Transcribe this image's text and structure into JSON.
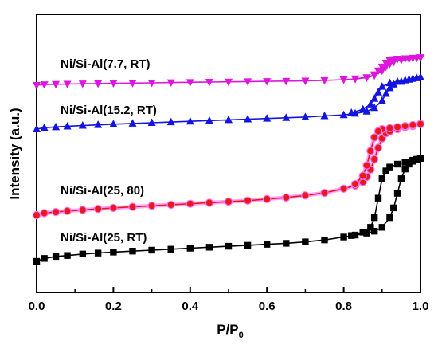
{
  "chart_data": {
    "type": "line",
    "xlabel": "P/P",
    "xlabel_sub": "0",
    "ylabel": "Intensity (a.u.)",
    "xlim": [
      0.0,
      1.0
    ],
    "x_ticks": [
      "0.0",
      "0.2",
      "0.4",
      "0.6",
      "0.8",
      "1.0"
    ],
    "y_ticks_labeled": false,
    "grid": false,
    "legend": "inline labels above each curve",
    "series": [
      {
        "name": "Ni/Si-Al(25, RT)",
        "color": "#000000",
        "marker": "square",
        "offset": 0.0,
        "adsorption": [
          [
            0.0,
            0.0
          ],
          [
            0.02,
            0.03
          ],
          [
            0.05,
            0.05
          ],
          [
            0.08,
            0.06
          ],
          [
            0.12,
            0.075
          ],
          [
            0.16,
            0.085
          ],
          [
            0.2,
            0.095
          ],
          [
            0.25,
            0.105
          ],
          [
            0.3,
            0.115
          ],
          [
            0.35,
            0.125
          ],
          [
            0.4,
            0.135
          ],
          [
            0.45,
            0.145
          ],
          [
            0.5,
            0.155
          ],
          [
            0.55,
            0.165
          ],
          [
            0.6,
            0.175
          ],
          [
            0.65,
            0.185
          ],
          [
            0.7,
            0.2
          ],
          [
            0.75,
            0.22
          ],
          [
            0.8,
            0.25
          ],
          [
            0.83,
            0.27
          ],
          [
            0.86,
            0.29
          ],
          [
            0.88,
            0.31
          ],
          [
            0.9,
            0.35
          ],
          [
            0.92,
            0.45
          ],
          [
            0.93,
            0.55
          ],
          [
            0.94,
            0.7
          ],
          [
            0.95,
            0.85
          ],
          [
            0.96,
            0.95
          ],
          [
            0.97,
            1.0
          ],
          [
            0.98,
            1.03
          ],
          [
            0.99,
            1.05
          ],
          [
            1.0,
            1.06
          ]
        ],
        "desorption": [
          [
            1.0,
            1.06
          ],
          [
            0.98,
            1.04
          ],
          [
            0.96,
            1.02
          ],
          [
            0.94,
            1.0
          ],
          [
            0.92,
            0.97
          ],
          [
            0.91,
            0.93
          ],
          [
            0.9,
            0.85
          ],
          [
            0.89,
            0.65
          ],
          [
            0.88,
            0.45
          ],
          [
            0.87,
            0.35
          ],
          [
            0.85,
            0.3
          ],
          [
            0.82,
            0.265
          ]
        ]
      },
      {
        "name": "Ni/Si-Al(25, 80)",
        "color": "#e8191b",
        "marker": "circle",
        "offset": 0.0,
        "adsorption": [
          [
            0.0,
            0.0
          ],
          [
            0.02,
            0.02
          ],
          [
            0.05,
            0.03
          ],
          [
            0.08,
            0.04
          ],
          [
            0.12,
            0.05
          ],
          [
            0.16,
            0.06
          ],
          [
            0.2,
            0.07
          ],
          [
            0.25,
            0.08
          ],
          [
            0.3,
            0.09
          ],
          [
            0.35,
            0.1
          ],
          [
            0.4,
            0.11
          ],
          [
            0.45,
            0.12
          ],
          [
            0.5,
            0.13
          ],
          [
            0.55,
            0.14
          ],
          [
            0.6,
            0.155
          ],
          [
            0.65,
            0.17
          ],
          [
            0.7,
            0.19
          ],
          [
            0.75,
            0.215
          ],
          [
            0.8,
            0.255
          ],
          [
            0.83,
            0.285
          ],
          [
            0.85,
            0.32
          ],
          [
            0.86,
            0.37
          ],
          [
            0.87,
            0.44
          ],
          [
            0.88,
            0.54
          ],
          [
            0.89,
            0.65
          ],
          [
            0.9,
            0.74
          ],
          [
            0.91,
            0.79
          ],
          [
            0.92,
            0.81
          ],
          [
            0.94,
            0.83
          ],
          [
            0.96,
            0.85
          ],
          [
            0.98,
            0.86
          ],
          [
            1.0,
            0.88
          ]
        ],
        "desorption": [
          [
            1.0,
            0.88
          ],
          [
            0.98,
            0.87
          ],
          [
            0.96,
            0.86
          ],
          [
            0.94,
            0.85
          ],
          [
            0.92,
            0.84
          ],
          [
            0.9,
            0.83
          ],
          [
            0.89,
            0.81
          ],
          [
            0.88,
            0.75
          ],
          [
            0.87,
            0.62
          ],
          [
            0.86,
            0.48
          ],
          [
            0.85,
            0.38
          ],
          [
            0.83,
            0.3
          ]
        ]
      },
      {
        "name": "Ni/Si-Al(15.2, RT)",
        "color": "#1414e0",
        "marker": "triangle-up",
        "offset": 0.0,
        "adsorption": [
          [
            0.0,
            0.0
          ],
          [
            0.02,
            0.02
          ],
          [
            0.05,
            0.03
          ],
          [
            0.08,
            0.04
          ],
          [
            0.12,
            0.05
          ],
          [
            0.16,
            0.06
          ],
          [
            0.2,
            0.07
          ],
          [
            0.25,
            0.08
          ],
          [
            0.3,
            0.09
          ],
          [
            0.35,
            0.1
          ],
          [
            0.4,
            0.11
          ],
          [
            0.45,
            0.12
          ],
          [
            0.5,
            0.13
          ],
          [
            0.55,
            0.14
          ],
          [
            0.6,
            0.15
          ],
          [
            0.65,
            0.16
          ],
          [
            0.7,
            0.17
          ],
          [
            0.75,
            0.185
          ],
          [
            0.8,
            0.2
          ],
          [
            0.83,
            0.22
          ],
          [
            0.86,
            0.25
          ],
          [
            0.88,
            0.3
          ],
          [
            0.9,
            0.4
          ],
          [
            0.91,
            0.5
          ],
          [
            0.92,
            0.58
          ],
          [
            0.93,
            0.63
          ],
          [
            0.95,
            0.67
          ],
          [
            0.97,
            0.7
          ],
          [
            0.99,
            0.72
          ],
          [
            1.0,
            0.73
          ]
        ],
        "desorption": [
          [
            1.0,
            0.73
          ],
          [
            0.98,
            0.71
          ],
          [
            0.96,
            0.69
          ],
          [
            0.94,
            0.67
          ],
          [
            0.92,
            0.65
          ],
          [
            0.9,
            0.6
          ],
          [
            0.89,
            0.52
          ],
          [
            0.88,
            0.43
          ],
          [
            0.87,
            0.35
          ],
          [
            0.85,
            0.28
          ],
          [
            0.82,
            0.23
          ]
        ]
      },
      {
        "name": "Ni/Si-Al(7.7, RT)",
        "color": "#dd16dd",
        "marker": "triangle-down",
        "offset": 0.0,
        "adsorption": [
          [
            0.0,
            0.0
          ],
          [
            0.02,
            0.015
          ],
          [
            0.05,
            0.02
          ],
          [
            0.08,
            0.025
          ],
          [
            0.12,
            0.03
          ],
          [
            0.16,
            0.035
          ],
          [
            0.2,
            0.04
          ],
          [
            0.25,
            0.045
          ],
          [
            0.3,
            0.05
          ],
          [
            0.35,
            0.055
          ],
          [
            0.4,
            0.06
          ],
          [
            0.45,
            0.065
          ],
          [
            0.5,
            0.07
          ],
          [
            0.55,
            0.075
          ],
          [
            0.6,
            0.08
          ],
          [
            0.65,
            0.085
          ],
          [
            0.7,
            0.09
          ],
          [
            0.75,
            0.1
          ],
          [
            0.8,
            0.115
          ],
          [
            0.83,
            0.13
          ],
          [
            0.86,
            0.155
          ],
          [
            0.88,
            0.2
          ],
          [
            0.9,
            0.3
          ],
          [
            0.91,
            0.38
          ],
          [
            0.92,
            0.44
          ],
          [
            0.93,
            0.48
          ],
          [
            0.95,
            0.52
          ],
          [
            0.97,
            0.54
          ],
          [
            0.99,
            0.56
          ],
          [
            1.0,
            0.57
          ]
        ],
        "desorption": [
          [
            1.0,
            0.57
          ],
          [
            0.98,
            0.56
          ],
          [
            0.96,
            0.55
          ],
          [
            0.94,
            0.54
          ],
          [
            0.93,
            0.53
          ],
          [
            0.92,
            0.51
          ],
          [
            0.91,
            0.46
          ],
          [
            0.9,
            0.38
          ],
          [
            0.89,
            0.3
          ],
          [
            0.88,
            0.22
          ],
          [
            0.86,
            0.16
          ],
          [
            0.83,
            0.135
          ]
        ]
      }
    ]
  }
}
